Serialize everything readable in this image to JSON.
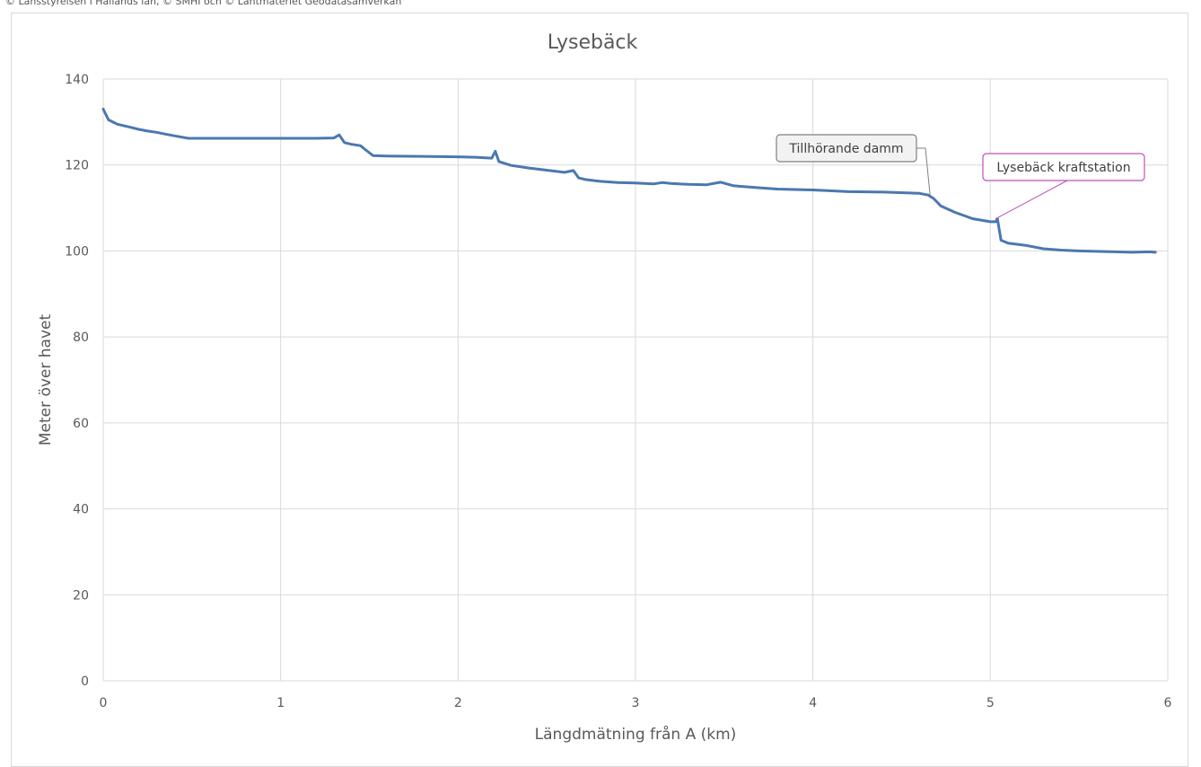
{
  "credit": "© Länsstyrelsen i Hallands län, © SMHI och © Lantmäteriet Geodatasamverkan",
  "chart_data": {
    "type": "line",
    "title": "Lysebäck",
    "xlabel": "Längdmätning från A (km)",
    "ylabel": "Meter över havet",
    "xlim": [
      0,
      6
    ],
    "ylim": [
      0,
      140
    ],
    "xticks": [
      "0",
      "1",
      "2",
      "3",
      "4",
      "5",
      "6"
    ],
    "yticks": [
      "0",
      "20",
      "40",
      "60",
      "80",
      "100",
      "120",
      "140"
    ],
    "grid": true,
    "legend": "none",
    "line_color": "#4a78b0",
    "series": [
      {
        "x": [
          0.0,
          0.03,
          0.08,
          0.15,
          0.2,
          0.25,
          0.3,
          0.35,
          0.4,
          0.48,
          0.6,
          0.8,
          1.0,
          1.2,
          1.3,
          1.33,
          1.36,
          1.4,
          1.45,
          1.48,
          1.52,
          1.6,
          1.8,
          2.0,
          2.1,
          2.19,
          2.21,
          2.23,
          2.3,
          2.4,
          2.5,
          2.6,
          2.65,
          2.68,
          2.72,
          2.8,
          2.9,
          3.0,
          3.1,
          3.15,
          3.2,
          3.3,
          3.4,
          3.48,
          3.55,
          3.6,
          3.7,
          3.8,
          4.0,
          4.2,
          4.4,
          4.6,
          4.65,
          4.68,
          4.72,
          4.8,
          4.9,
          5.0,
          5.03,
          5.04,
          5.06,
          5.1,
          5.2,
          5.3,
          5.4,
          5.5,
          5.6,
          5.7,
          5.8,
          5.9,
          5.93
        ],
        "y": [
          133,
          130.5,
          129.5,
          128.8,
          128.3,
          127.9,
          127.6,
          127.2,
          126.8,
          126.2,
          126.2,
          126.2,
          126.2,
          126.2,
          126.3,
          127.0,
          125.2,
          124.8,
          124.5,
          123.5,
          122.2,
          122.1,
          122.0,
          121.9,
          121.8,
          121.6,
          123.2,
          120.8,
          119.9,
          119.3,
          118.8,
          118.3,
          118.7,
          117.0,
          116.6,
          116.2,
          115.9,
          115.8,
          115.6,
          115.9,
          115.7,
          115.5,
          115.4,
          116.0,
          115.2,
          115.0,
          114.7,
          114.4,
          114.2,
          113.8,
          113.7,
          113.4,
          113.0,
          112.2,
          110.5,
          109.0,
          107.5,
          106.8,
          106.8,
          107.5,
          102.5,
          101.8,
          101.3,
          100.5,
          100.2,
          100.0,
          99.9,
          99.8,
          99.7,
          99.8,
          99.7
        ]
      }
    ],
    "annotations": [
      {
        "text": "Tillhörande damm",
        "x": 4.66,
        "y": 113.0,
        "color": "#7f7f7f",
        "fill": "#f2f2f2"
      },
      {
        "text": "Lysebäck kraftstation",
        "x": 5.03,
        "y": 107.5,
        "color": "#c04fba",
        "fill": "#ffffff"
      }
    ]
  }
}
